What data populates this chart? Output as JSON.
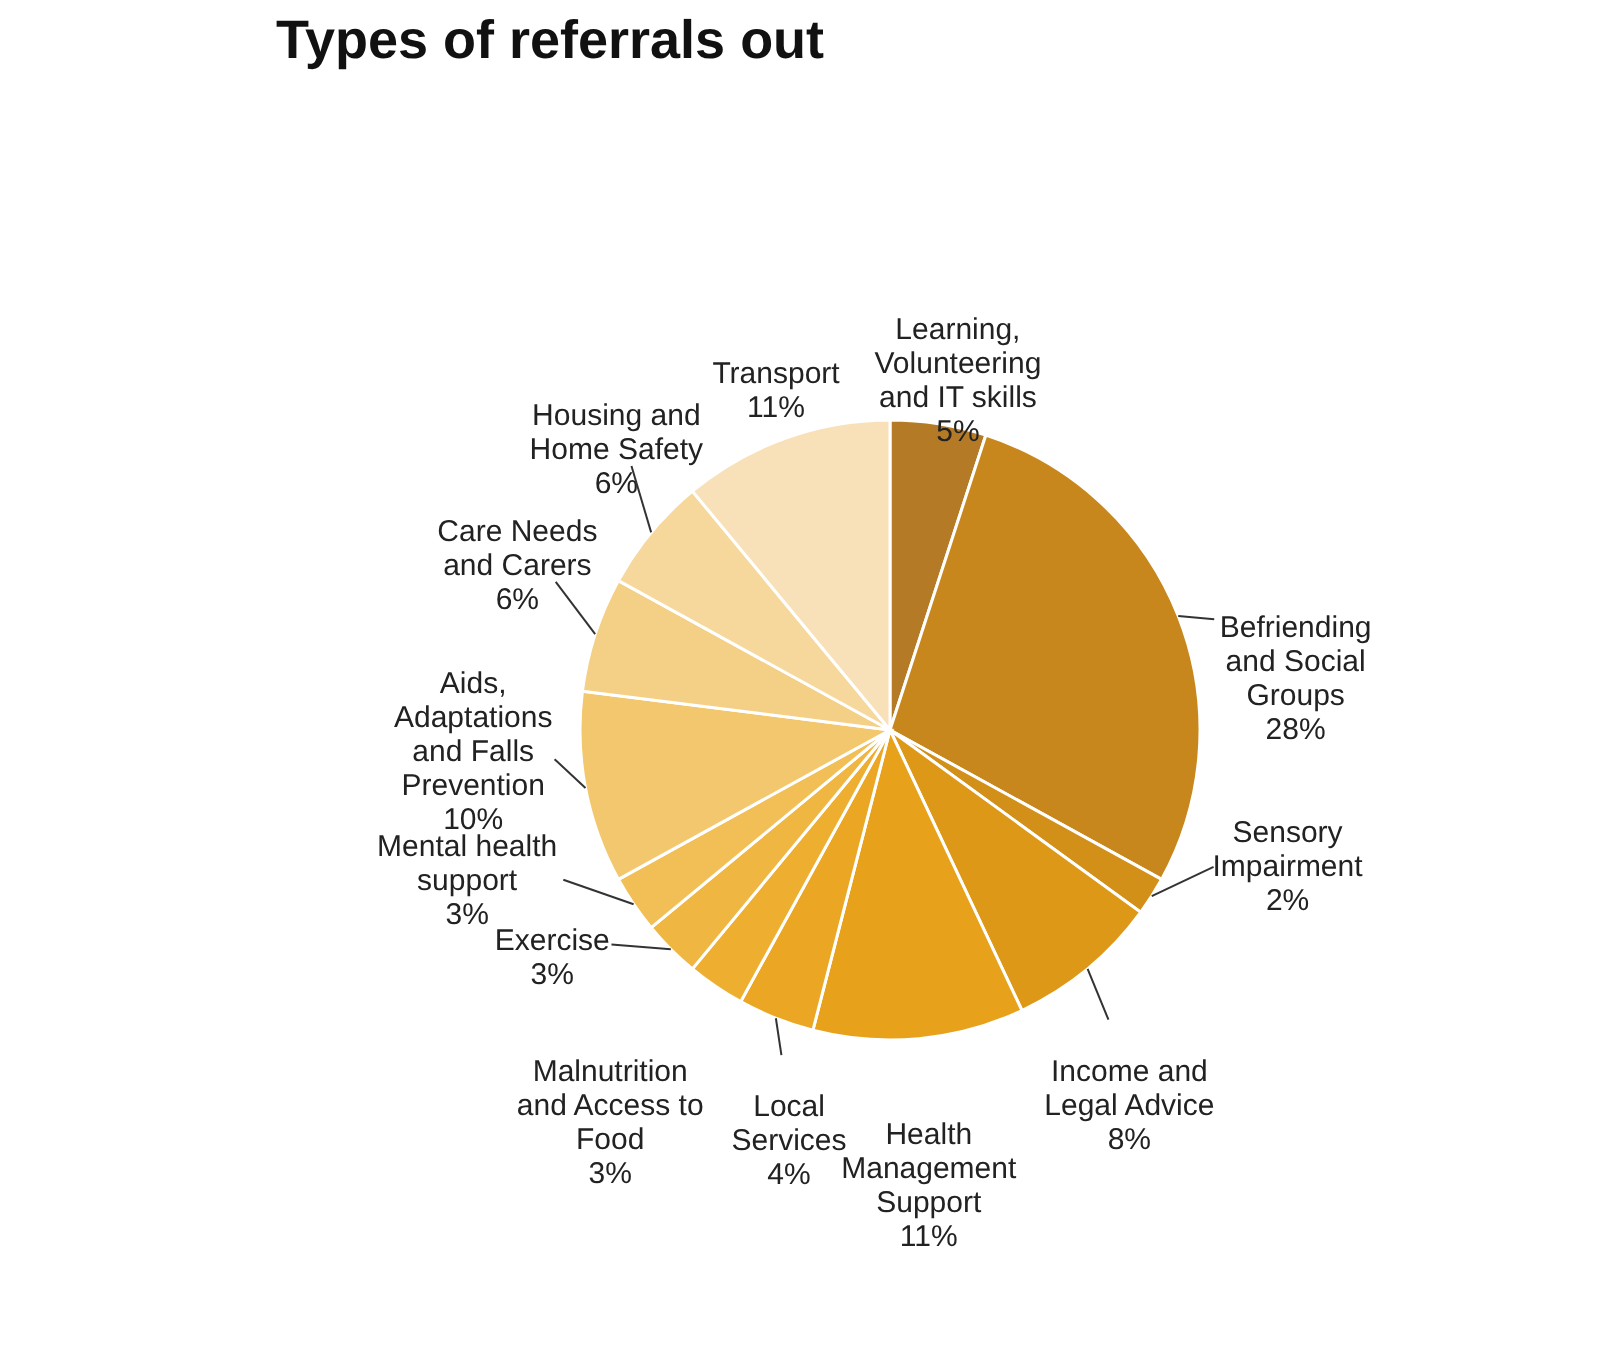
{
  "chart_data": {
    "type": "pie",
    "title": "Types of referrals out",
    "categories": [
      "Learning, Volunteering and IT skills",
      "Befriending and Social Groups",
      "Sensory Impairment",
      "Income and Legal Advice",
      "Health Management Support",
      "Local Services",
      "Malnutrition and Access to Food",
      "Exercise",
      "Mental health support",
      "Aids, Adaptations and Falls Prevention",
      "Care Needs and Carers",
      "Housing and Home Safety",
      "Transport"
    ],
    "values": [
      5,
      28,
      2,
      8,
      11,
      4,
      3,
      3,
      3,
      10,
      6,
      6,
      11
    ],
    "value_labels": [
      "5%",
      "28%",
      "2%",
      "8%",
      "11%",
      "4%",
      "3%",
      "3%",
      "3%",
      "10%",
      "6%",
      "6%",
      "11%"
    ],
    "colors": [
      "#b57a26",
      "#c8871c",
      "#d29018",
      "#de9818",
      "#e8a11a",
      "#eba623",
      "#eeae30",
      "#f0b642",
      "#f2bf56",
      "#f3c76e",
      "#f4cf86",
      "#f6d89c",
      "#f8e1b8"
    ]
  }
}
